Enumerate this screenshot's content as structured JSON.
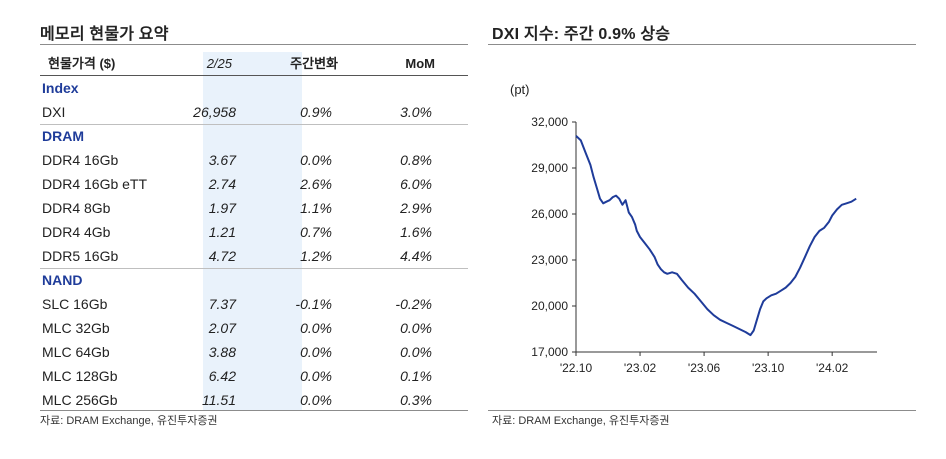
{
  "left_panel": {
    "title": "메모리 현물가 요약",
    "source": "자료: DRAM Exchange, 유진투자증권",
    "table": {
      "headers": [
        "현물가격 ($)",
        "2/25",
        "주간변화",
        "MoM"
      ],
      "groups": [
        {
          "name": "Index",
          "rows": [
            {
              "label": "DXI",
              "price": "26,958",
              "weekly": "0.9%",
              "mom": "3.0%"
            }
          ]
        },
        {
          "name": "DRAM",
          "rows": [
            {
              "label": "DDR4 16Gb",
              "price": "3.67",
              "weekly": "0.0%",
              "mom": "0.8%"
            },
            {
              "label": "DDR4 16Gb eTT",
              "price": "2.74",
              "weekly": "2.6%",
              "mom": "6.0%"
            },
            {
              "label": "DDR4 8Gb",
              "price": "1.97",
              "weekly": "1.1%",
              "mom": "2.9%"
            },
            {
              "label": "DDR4 4Gb",
              "price": "1.21",
              "weekly": "0.7%",
              "mom": "1.6%"
            },
            {
              "label": "DDR5 16Gb",
              "price": "4.72",
              "weekly": "1.2%",
              "mom": "4.4%"
            }
          ]
        },
        {
          "name": "NAND",
          "rows": [
            {
              "label": "SLC 16Gb",
              "price": "7.37",
              "weekly": "-0.1%",
              "mom": "-0.2%"
            },
            {
              "label": "MLC 32Gb",
              "price": "2.07",
              "weekly": "0.0%",
              "mom": "0.0%"
            },
            {
              "label": "MLC 64Gb",
              "price": "3.88",
              "weekly": "0.0%",
              "mom": "0.0%"
            },
            {
              "label": "MLC 128Gb",
              "price": "6.42",
              "weekly": "0.0%",
              "mom": "0.1%"
            },
            {
              "label": "MLC 256Gb",
              "price": "11.51",
              "weekly": "0.0%",
              "mom": "0.3%"
            }
          ]
        }
      ]
    }
  },
  "right_panel": {
    "title": "DXI 지수: 주간 0.9% 상승",
    "source": "자료: DRAM Exchange, 유진투자증권"
  },
  "chart_data": {
    "type": "line",
    "title": "DXI 지수: 주간 0.9% 상승",
    "ylabel": "(pt)",
    "xlabel": "",
    "ylim": [
      17000,
      32000
    ],
    "yticks": [
      17000,
      20000,
      23000,
      26000,
      29000,
      32000
    ],
    "ytick_labels": [
      "17,000",
      "20,000",
      "23,000",
      "26,000",
      "29,000",
      "32,000"
    ],
    "xlim": [
      0,
      18.8
    ],
    "xticks": [
      0,
      4,
      8,
      12,
      16
    ],
    "xtick_labels": [
      "'22.10",
      "'23.02",
      "'23.06",
      "'23.10",
      "'24.02"
    ],
    "line_color": "#1f3c9a",
    "series": [
      {
        "name": "DXI",
        "x": [
          0,
          0.3,
          0.6,
          0.9,
          1.1,
          1.3,
          1.5,
          1.7,
          1.9,
          2.1,
          2.3,
          2.5,
          2.7,
          2.9,
          3.1,
          3.3,
          3.5,
          3.7,
          3.8,
          4.0,
          4.3,
          4.6,
          4.9,
          5.1,
          5.3,
          5.5,
          5.7,
          6.0,
          6.3,
          6.6,
          7.0,
          7.4,
          7.8,
          8.2,
          8.6,
          9.0,
          9.4,
          9.8,
          10.2,
          10.6,
          10.9,
          11.1,
          11.3,
          11.5,
          11.7,
          11.9,
          12.2,
          12.5,
          12.8,
          13.1,
          13.4,
          13.7,
          14.0,
          14.3,
          14.6,
          14.9,
          15.2,
          15.5,
          15.8,
          16.0,
          16.3,
          16.6,
          16.9,
          17.2,
          17.5
        ],
        "y": [
          31100,
          30800,
          30000,
          29200,
          28400,
          27700,
          27000,
          26700,
          26800,
          26900,
          27100,
          27200,
          27000,
          26600,
          26900,
          26100,
          25800,
          25300,
          24900,
          24500,
          24100,
          23700,
          23200,
          22700,
          22400,
          22200,
          22100,
          22200,
          22100,
          21700,
          21200,
          20800,
          20300,
          19800,
          19400,
          19100,
          18900,
          18700,
          18500,
          18300,
          18100,
          18400,
          19100,
          19800,
          20300,
          20500,
          20700,
          20800,
          21000,
          21200,
          21500,
          21900,
          22500,
          23200,
          23900,
          24500,
          24900,
          25100,
          25500,
          25900,
          26300,
          26600,
          26700,
          26800,
          27000
        ]
      }
    ]
  }
}
